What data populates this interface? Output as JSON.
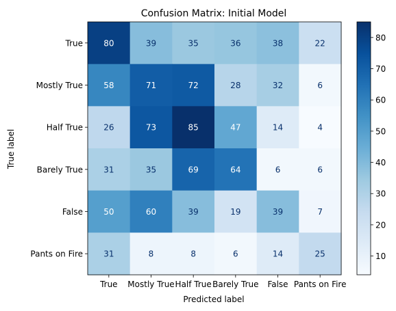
{
  "chart_data": {
    "type": "heatmap",
    "title": "Confusion Matrix: Initial Model",
    "xlabel": "Predicted label",
    "ylabel": "True label",
    "x_categories": [
      "True",
      "Mostly True",
      "Half True",
      "Barely True",
      "False",
      "Pants on Fire"
    ],
    "y_categories": [
      "True",
      "Mostly True",
      "Half True",
      "Barely True",
      "False",
      "Pants on Fire"
    ],
    "values": [
      [
        80,
        39,
        35,
        36,
        38,
        22
      ],
      [
        58,
        71,
        72,
        28,
        32,
        6
      ],
      [
        26,
        73,
        85,
        47,
        14,
        4
      ],
      [
        31,
        35,
        69,
        64,
        6,
        6
      ],
      [
        50,
        60,
        39,
        19,
        39,
        7
      ],
      [
        31,
        8,
        8,
        6,
        14,
        25
      ]
    ],
    "colormap": "Blues",
    "colorbar": {
      "ticks": [
        10,
        20,
        30,
        40,
        50,
        60,
        70,
        80
      ],
      "range": [
        4,
        85
      ]
    },
    "grid": false
  }
}
